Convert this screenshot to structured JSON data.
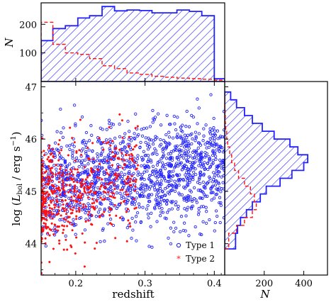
{
  "chart_data": [
    {
      "type": "scatter",
      "xlabel": "redshift",
      "ylabel": "log (L_bol / erg s⁻¹)",
      "ylabel_parts": {
        "prefix": "log (",
        "L": "L",
        "sub": "bol",
        "mid": " / erg s",
        "sup": "−1",
        "suffix": ")"
      },
      "xlim": [
        0.15,
        0.415
      ],
      "ylim": [
        43.4,
        47.1
      ],
      "xticks": [
        0.2,
        0.3,
        0.4
      ],
      "xtick_labels": [
        "0.2",
        "0.3",
        "0.4"
      ],
      "yticks": [
        44,
        45,
        46,
        47
      ],
      "ytick_labels": [
        "44",
        "45",
        "46",
        "47"
      ],
      "legend": {
        "placement": "bottom-right",
        "entries": [
          "Type 1",
          "Type 2"
        ]
      },
      "series": [
        {
          "name": "Type 1",
          "color": "#2222ff",
          "marker": "open-circle",
          "x_range": [
            0.15,
            0.415
          ],
          "y_center": [
            45.05,
            45.5
          ],
          "y_spread": 0.48,
          "count": 1400
        },
        {
          "name": "Type 2",
          "color": "#ff1111",
          "marker": "star",
          "x_range": [
            0.15,
            0.29
          ],
          "y_center": [
            44.85,
            45.25
          ],
          "y_spread": 0.5,
          "count": 560
        }
      ]
    },
    {
      "type": "bar",
      "role": "top-histogram",
      "xlim": [
        0.15,
        0.415
      ],
      "ylabel": "N",
      "ylim": [
        0,
        275
      ],
      "yticks": [
        100,
        200
      ],
      "ytick_labels": [
        "100",
        "200"
      ],
      "bin_edges": [
        0.15,
        0.167,
        0.185,
        0.203,
        0.22,
        0.238,
        0.256,
        0.274,
        0.292,
        0.31,
        0.328,
        0.346,
        0.364,
        0.382,
        0.4,
        0.415
      ],
      "series": [
        {
          "name": "Type 1",
          "color": "#2222ff",
          "style": "hatched-filled",
          "values": [
            143,
            185,
            195,
            222,
            230,
            262,
            247,
            250,
            248,
            240,
            240,
            250,
            245,
            230,
            10
          ]
        },
        {
          "name": "Type 2",
          "color": "#ff1111",
          "style": "dashed-step",
          "values": [
            207,
            130,
            100,
            95,
            80,
            55,
            45,
            30,
            25,
            18,
            15,
            12,
            10,
            8,
            5
          ]
        }
      ]
    },
    {
      "type": "bar",
      "role": "right-histogram",
      "orientation": "horizontal",
      "xlabel": "N",
      "xlim": [
        0,
        520
      ],
      "xticks": [
        200,
        400
      ],
      "xtick_labels": [
        "200",
        "400"
      ],
      "ylim": [
        43.4,
        47.1
      ],
      "bin_edges": [
        43.9,
        44.2,
        44.35,
        44.5,
        44.65,
        44.8,
        44.95,
        45.1,
        45.25,
        45.4,
        45.55,
        45.7,
        45.85,
        46.0,
        46.15,
        46.3,
        46.45,
        46.6,
        46.75,
        46.9
      ],
      "series": [
        {
          "name": "Type 1",
          "color": "#2222ff",
          "style": "hatched-filled",
          "values": [
            55,
            65,
            80,
            110,
            140,
            180,
            210,
            280,
            340,
            400,
            420,
            370,
            330,
            250,
            190,
            140,
            100,
            60,
            30
          ]
        },
        {
          "name": "Type 2",
          "color": "#ff1111",
          "style": "dashed-step",
          "values": [
            20,
            60,
            100,
            140,
            160,
            150,
            130,
            100,
            70,
            50,
            35,
            25,
            15,
            10,
            5,
            3,
            2,
            1,
            0
          ]
        }
      ]
    }
  ]
}
